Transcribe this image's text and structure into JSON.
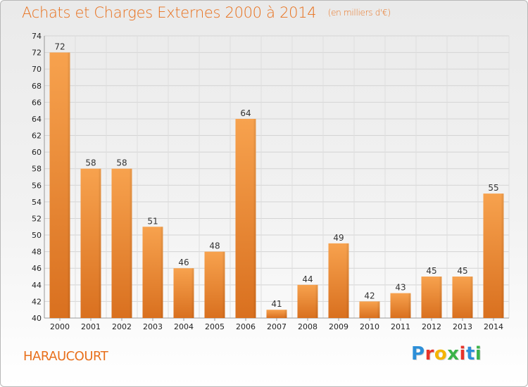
{
  "header": {
    "title": "Achats et Charges Externes 2000 à 2014",
    "unit": "(en milliers d'€)"
  },
  "footer": {
    "commune": "HARAUCOURT",
    "logo": "Proxiti"
  },
  "colors": {
    "accent": "#e8701c",
    "bar_light": "#f7a24e",
    "bar_dark": "#d9701f"
  },
  "chart_data": {
    "type": "bar",
    "title": "Achats et Charges Externes 2000 à 2014",
    "subtitle": "(en milliers d'€)",
    "xlabel": "",
    "ylabel": "",
    "categories": [
      "2000",
      "2001",
      "2002",
      "2003",
      "2004",
      "2005",
      "2006",
      "2007",
      "2008",
      "2009",
      "2010",
      "2011",
      "2012",
      "2013",
      "2014"
    ],
    "values": [
      72,
      58,
      58,
      51,
      46,
      48,
      64,
      41,
      44,
      49,
      42,
      43,
      45,
      45,
      55
    ],
    "ylim": [
      40,
      74
    ],
    "yticks": [
      40,
      42,
      44,
      46,
      48,
      50,
      52,
      54,
      56,
      58,
      60,
      62,
      64,
      66,
      68,
      70,
      72,
      74
    ],
    "grid": true,
    "legend": "none"
  }
}
